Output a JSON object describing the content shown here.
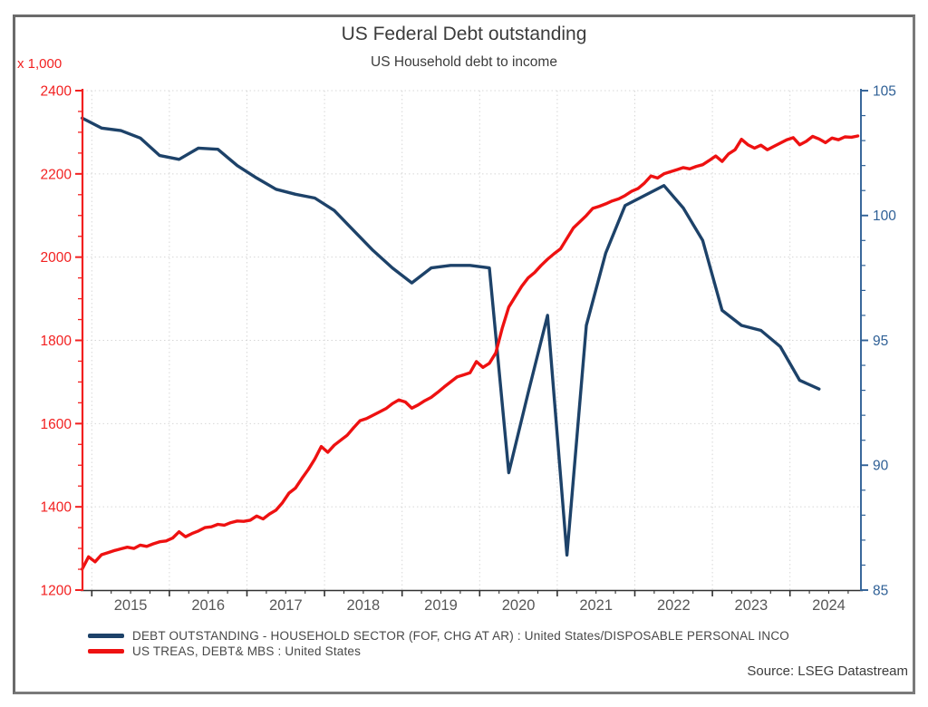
{
  "window": {
    "frame_color": "#7a7a7a",
    "background": "#ffffff"
  },
  "chart": {
    "title": "US Federal Debt outstanding",
    "subtitle": "US Household debt to income",
    "source": "Source: LSEG Datastream",
    "left_axis": {
      "multiplier_label": "x 1,000",
      "color": "#f22020",
      "min": 1200,
      "max": 2400,
      "major_step": 200,
      "minor_step": 50
    },
    "right_axis": {
      "color": "#2f6096",
      "min": 85,
      "max": 105,
      "major_step": 5,
      "minor_step": 1
    },
    "x_axis": {
      "color": "#303030",
      "label_color": "#575757",
      "years": [
        2015,
        2016,
        2017,
        2018,
        2019,
        2020,
        2021,
        2022,
        2023,
        2024
      ]
    },
    "grid_color": "#d7d7d7",
    "legend": [
      {
        "label": "DEBT OUTSTANDING - HOUSEHOLD SECTOR (FOF, CHG AT AR) : United States/DISPOSABLE PERSONAL INCO",
        "color": "#1d4269"
      },
      {
        "label": "US TREAS, DEBT& MBS : United States",
        "color": "#ee1111"
      }
    ]
  },
  "chart_data": {
    "type": "line",
    "title": "US Federal Debt outstanding",
    "subtitle": "US Household debt to income",
    "x_range": [
      2014.87,
      2024.92
    ],
    "left_ylim": [
      1200,
      2400
    ],
    "right_ylim": [
      85,
      105
    ],
    "grid": "dotted",
    "legend_position": "bottom-left",
    "series": [
      {
        "name": "DEBT OUTSTANDING - HOUSEHOLD SECTOR (FOF, CHG AT AR) : United States/DISPOSABLE PERSONAL INCO",
        "axis": "right",
        "color": "#1d4269",
        "frequency": "quarterly",
        "start_year": 2014,
        "start_period": 4,
        "values": [
          103.9,
          103.5,
          103.4,
          103.1,
          102.4,
          102.25,
          102.7,
          102.65,
          102.0,
          101.5,
          101.05,
          100.85,
          100.7,
          100.2,
          99.4,
          98.6,
          97.9,
          97.3,
          97.9,
          98.0,
          98.0,
          97.9,
          89.7,
          92.9,
          96.0,
          86.4,
          95.6,
          98.5,
          100.4,
          100.8,
          101.2,
          100.3,
          99.0,
          96.2,
          95.6,
          95.4,
          94.75,
          93.4,
          93.05
        ]
      },
      {
        "name": "US TREAS, DEBT& MBS : United States",
        "axis": "left",
        "color": "#ee1111",
        "frequency": "monthly",
        "start_year": 2014,
        "start_period": 11,
        "values": [
          1250,
          1280,
          1268,
          1285,
          1290,
          1295,
          1299,
          1303,
          1300,
          1308,
          1305,
          1311,
          1316,
          1318,
          1325,
          1340,
          1328,
          1336,
          1342,
          1350,
          1352,
          1358,
          1356,
          1362,
          1366,
          1365,
          1368,
          1378,
          1371,
          1383,
          1392,
          1410,
          1433,
          1445,
          1468,
          1490,
          1515,
          1545,
          1531,
          1548,
          1560,
          1572,
          1590,
          1607,
          1612,
          1620,
          1628,
          1636,
          1648,
          1657,
          1652,
          1637,
          1645,
          1655,
          1663,
          1675,
          1688,
          1700,
          1712,
          1717,
          1722,
          1749,
          1735,
          1745,
          1770,
          1830,
          1880,
          1905,
          1930,
          1950,
          1963,
          1980,
          1995,
          2008,
          2020,
          2045,
          2070,
          2085,
          2100,
          2117,
          2122,
          2128,
          2135,
          2140,
          2148,
          2158,
          2165,
          2178,
          2195,
          2190,
          2200,
          2205,
          2210,
          2215,
          2212,
          2218,
          2222,
          2232,
          2243,
          2230,
          2248,
          2258,
          2283,
          2270,
          2262,
          2269,
          2258,
          2266,
          2274,
          2282,
          2287,
          2270,
          2278,
          2290,
          2284,
          2275,
          2286,
          2282,
          2289,
          2288,
          2291
        ]
      }
    ]
  }
}
